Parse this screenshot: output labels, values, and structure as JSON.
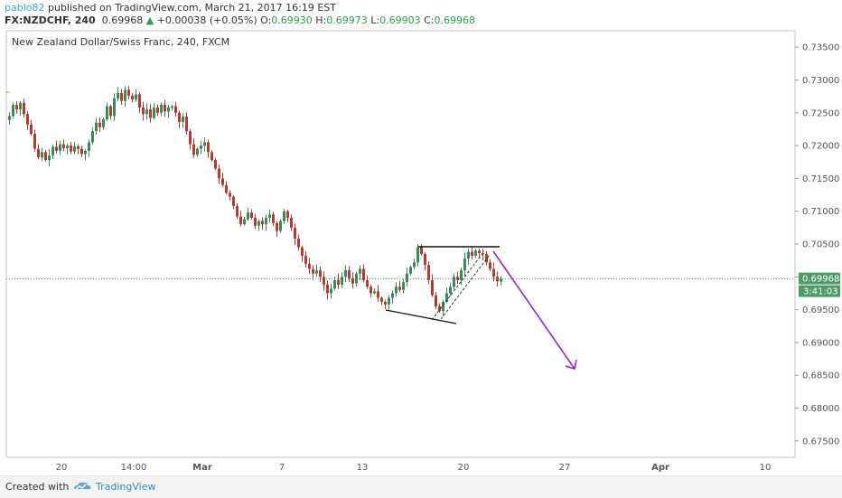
{
  "header": {
    "user": "pablo82",
    "published_text": "published on TradingView.com, March 21, 2017 16:19 EST"
  },
  "ohlc": {
    "symbol": "FX:NZDCHF, 240",
    "price": "0.69968",
    "change": "+0.00038 (+0.05%)",
    "o_label": "O:",
    "o_value": "0.69930",
    "h_label": "H:",
    "h_value": "0.69973",
    "l_label": "L:",
    "l_value": "0.69903",
    "c_label": "C:",
    "c_value": "0.69968"
  },
  "footer": {
    "created_with": "Created with",
    "brand": "TradingView"
  },
  "colors": {
    "bull": "#3c8a57",
    "bear": "#b23b33",
    "arrow": "#9a25d8",
    "price_line": "#4aa36a",
    "price_tag": "#4c9b66"
  },
  "chart_data": {
    "type": "candlestick",
    "title": "New Zealand Dollar/Swiss Franc, 240, FXCM",
    "ylim": [
      0.6725,
      0.7375
    ],
    "y_ticks": [
      "0.73500",
      "0.73000",
      "0.72500",
      "0.72000",
      "0.71500",
      "0.71000",
      "0.70500",
      "0.70000",
      "0.69500",
      "0.69000",
      "0.68500",
      "0.68000",
      "0.67500"
    ],
    "x_ticks": [
      "20",
      "14:00",
      "Mar",
      "7",
      "13",
      "20",
      "27",
      "Apr",
      "10"
    ],
    "last_price": "0.69968",
    "countdown": "3:41:03",
    "closes": [
      0.7245,
      0.7262,
      0.7255,
      0.7265,
      0.7248,
      0.7232,
      0.7218,
      0.7195,
      0.7182,
      0.719,
      0.7178,
      0.7185,
      0.7198,
      0.7192,
      0.7202,
      0.7196,
      0.72,
      0.7191,
      0.7199,
      0.7195,
      0.7187,
      0.7192,
      0.7205,
      0.7222,
      0.7235,
      0.7228,
      0.724,
      0.726,
      0.7245,
      0.7272,
      0.728,
      0.7268,
      0.7285,
      0.7276,
      0.727,
      0.7278,
      0.7258,
      0.7248,
      0.7255,
      0.7242,
      0.7258,
      0.725,
      0.7262,
      0.7252,
      0.7258,
      0.726,
      0.725,
      0.7236,
      0.7244,
      0.7222,
      0.7202,
      0.7186,
      0.7195,
      0.72,
      0.7205,
      0.719,
      0.7178,
      0.7165,
      0.715,
      0.714,
      0.7128,
      0.7122,
      0.7108,
      0.7092,
      0.708,
      0.7088,
      0.7098,
      0.709,
      0.7078,
      0.7085,
      0.708,
      0.709,
      0.7095,
      0.7082,
      0.707,
      0.7085,
      0.71,
      0.709,
      0.7075,
      0.7058,
      0.7045,
      0.7032,
      0.702,
      0.7012,
      0.7005,
      0.701,
      0.7,
      0.6988,
      0.6975,
      0.6982,
      0.6995,
      0.6988,
      0.7,
      0.701,
      0.6998,
      0.699,
      0.7005,
      0.7012,
      0.6995,
      0.6985,
      0.6975,
      0.6978,
      0.6968,
      0.6962,
      0.6958,
      0.6968,
      0.6975,
      0.6985,
      0.698,
      0.6992,
      0.7005,
      0.7015,
      0.7022,
      0.7045,
      0.7035,
      0.7018,
      0.6995,
      0.6972,
      0.6955,
      0.6948,
      0.6962,
      0.6975,
      0.6985,
      0.7,
      0.6995,
      0.701,
      0.7028,
      0.7038,
      0.7032,
      0.704,
      0.7036,
      0.7035,
      0.7022,
      0.7012,
      0.7,
      0.6993,
      0.6997
    ]
  }
}
